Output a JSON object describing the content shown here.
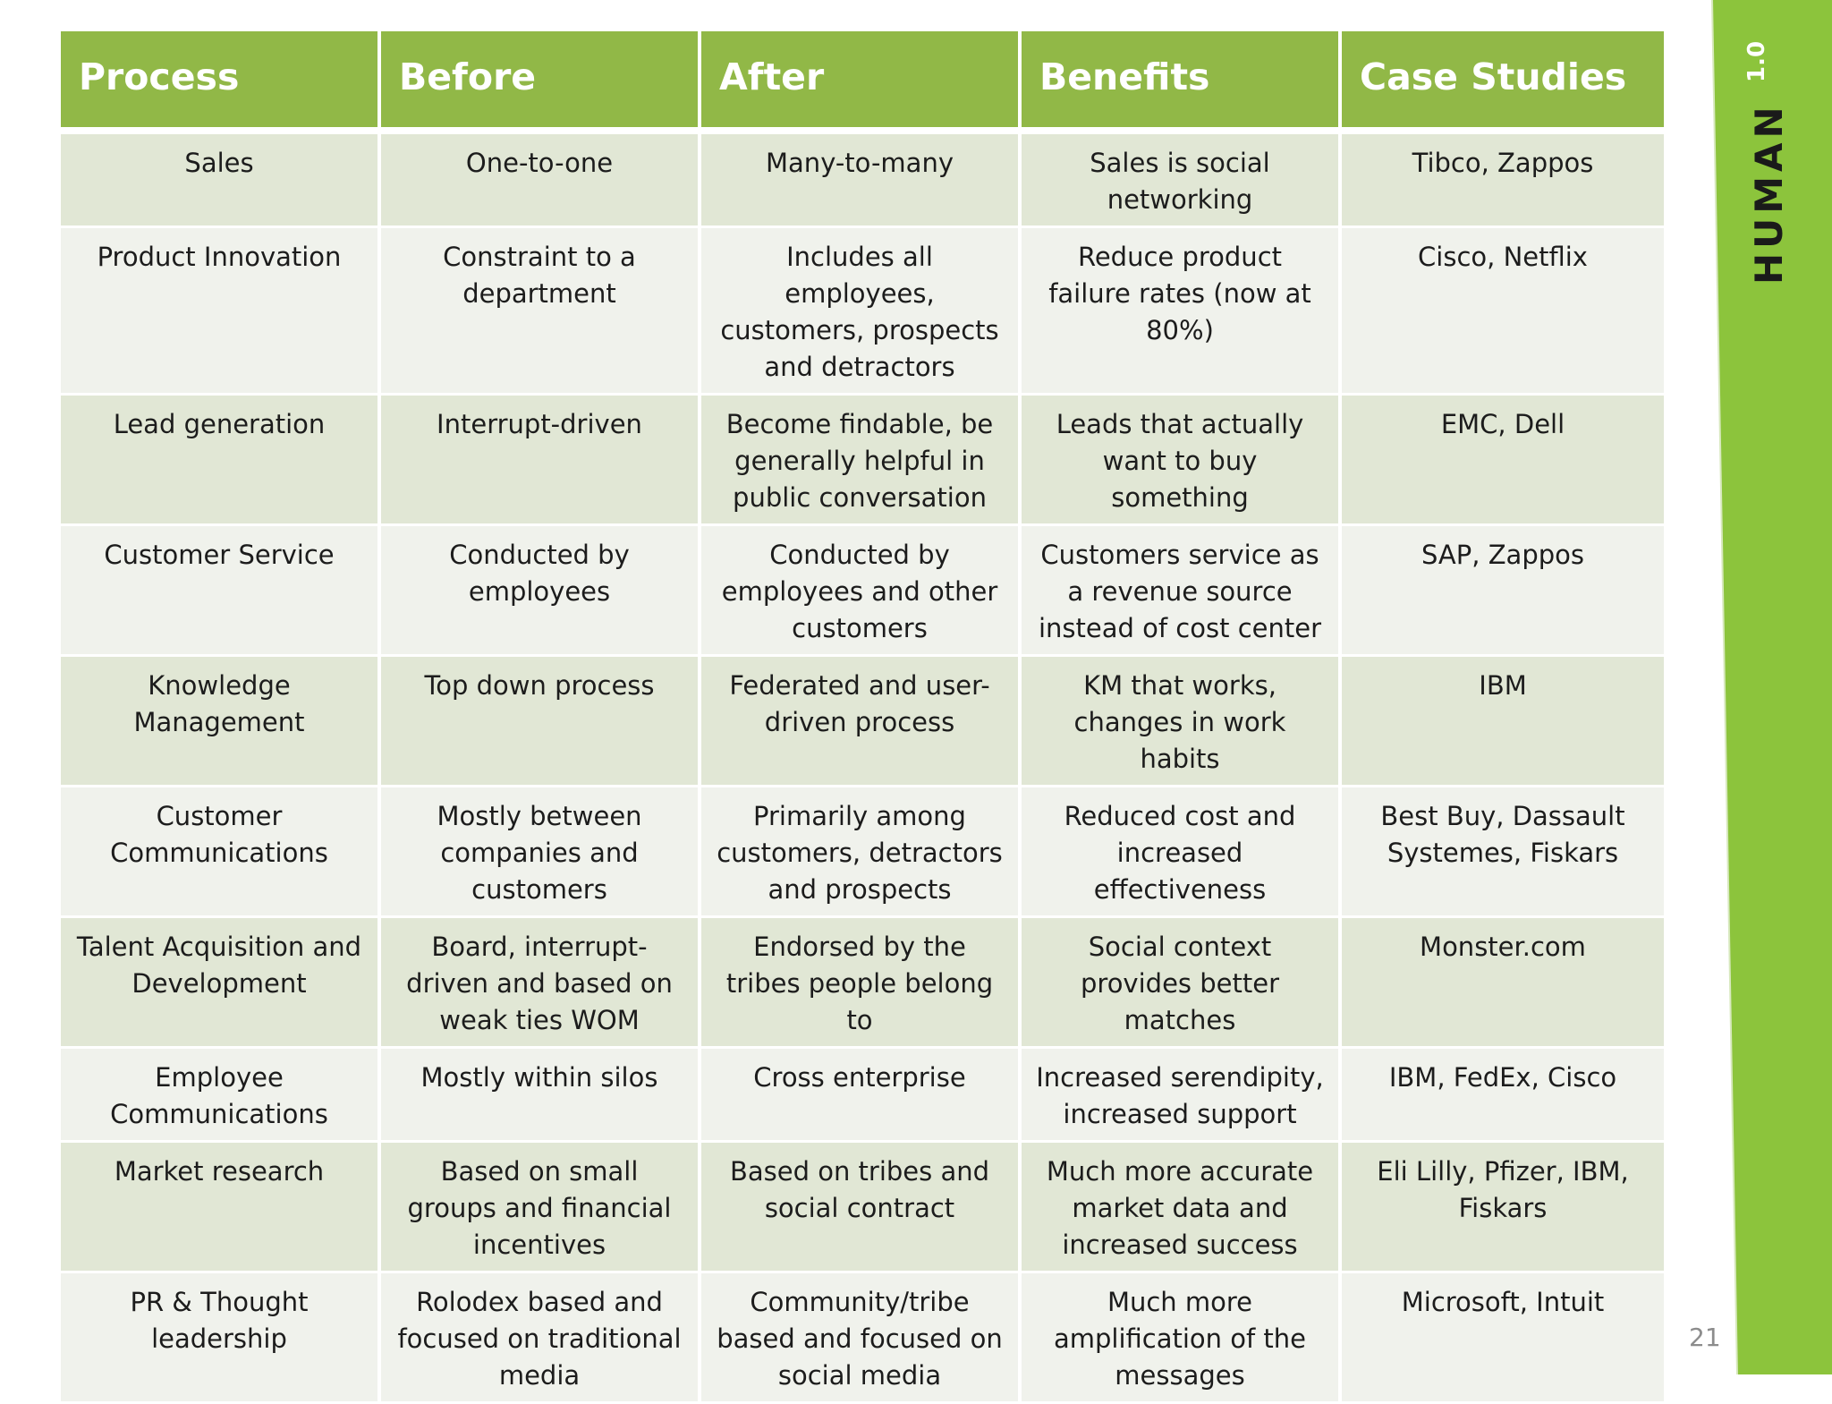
{
  "table": {
    "headers": [
      "Process",
      "Before",
      "After",
      "Benefits",
      "Case Studies"
    ],
    "rows": [
      [
        "Sales",
        "One-to-one",
        "Many-to-many",
        "Sales is social networking",
        "Tibco, Zappos"
      ],
      [
        "Product Innovation",
        "Constraint to a department",
        "Includes all employees, customers, prospects and detractors",
        "Reduce product failure rates (now at 80%)",
        "Cisco, Netflix"
      ],
      [
        "Lead generation",
        "Interrupt-driven",
        "Become findable, be generally helpful in public conversation",
        "Leads that actually want to buy something",
        "EMC, Dell"
      ],
      [
        "Customer Service",
        "Conducted by employees",
        "Conducted by employees and other customers",
        "Customers service as a revenue source instead of cost center",
        "SAP, Zappos"
      ],
      [
        "Knowledge Management",
        "Top down process",
        "Federated and user-driven process",
        "KM that works, changes in work habits",
        "IBM"
      ],
      [
        "Customer Communications",
        "Mostly between companies and customers",
        "Primarily among customers, detractors and prospects",
        "Reduced cost and increased effectiveness",
        "Best Buy, Dassault Systemes, Fiskars"
      ],
      [
        "Talent Acquisition and Development",
        "Board, interrupt-driven and based on weak ties WOM",
        "Endorsed by the tribes people belong to",
        "Social context provides better matches",
        "Monster.com"
      ],
      [
        "Employee Communications",
        "Mostly within silos",
        "Cross enterprise",
        "Increased serendipity, increased support",
        "IBM, FedEx, Cisco"
      ],
      [
        "Market research",
        "Based on small groups and financial incentives",
        "Based on tribes and social contract",
        "Much more accurate market data and increased success",
        "Eli Lilly, Pfizer, IBM, Fiskars"
      ],
      [
        "PR & Thought leadership",
        "Rolodex based and focused on traditional media",
        "Community/tribe based and focused on social media",
        "Much more amplification of the messages",
        "Microsoft, Intuit"
      ]
    ]
  },
  "brand": {
    "logo_text": "HUMAN",
    "version": "1.0"
  },
  "page_number": "21",
  "colors": {
    "header_green": "#91b847",
    "brand_green": "#8cc43c",
    "row_odd": "#e1e7d5",
    "row_even": "#f0f2ec"
  }
}
